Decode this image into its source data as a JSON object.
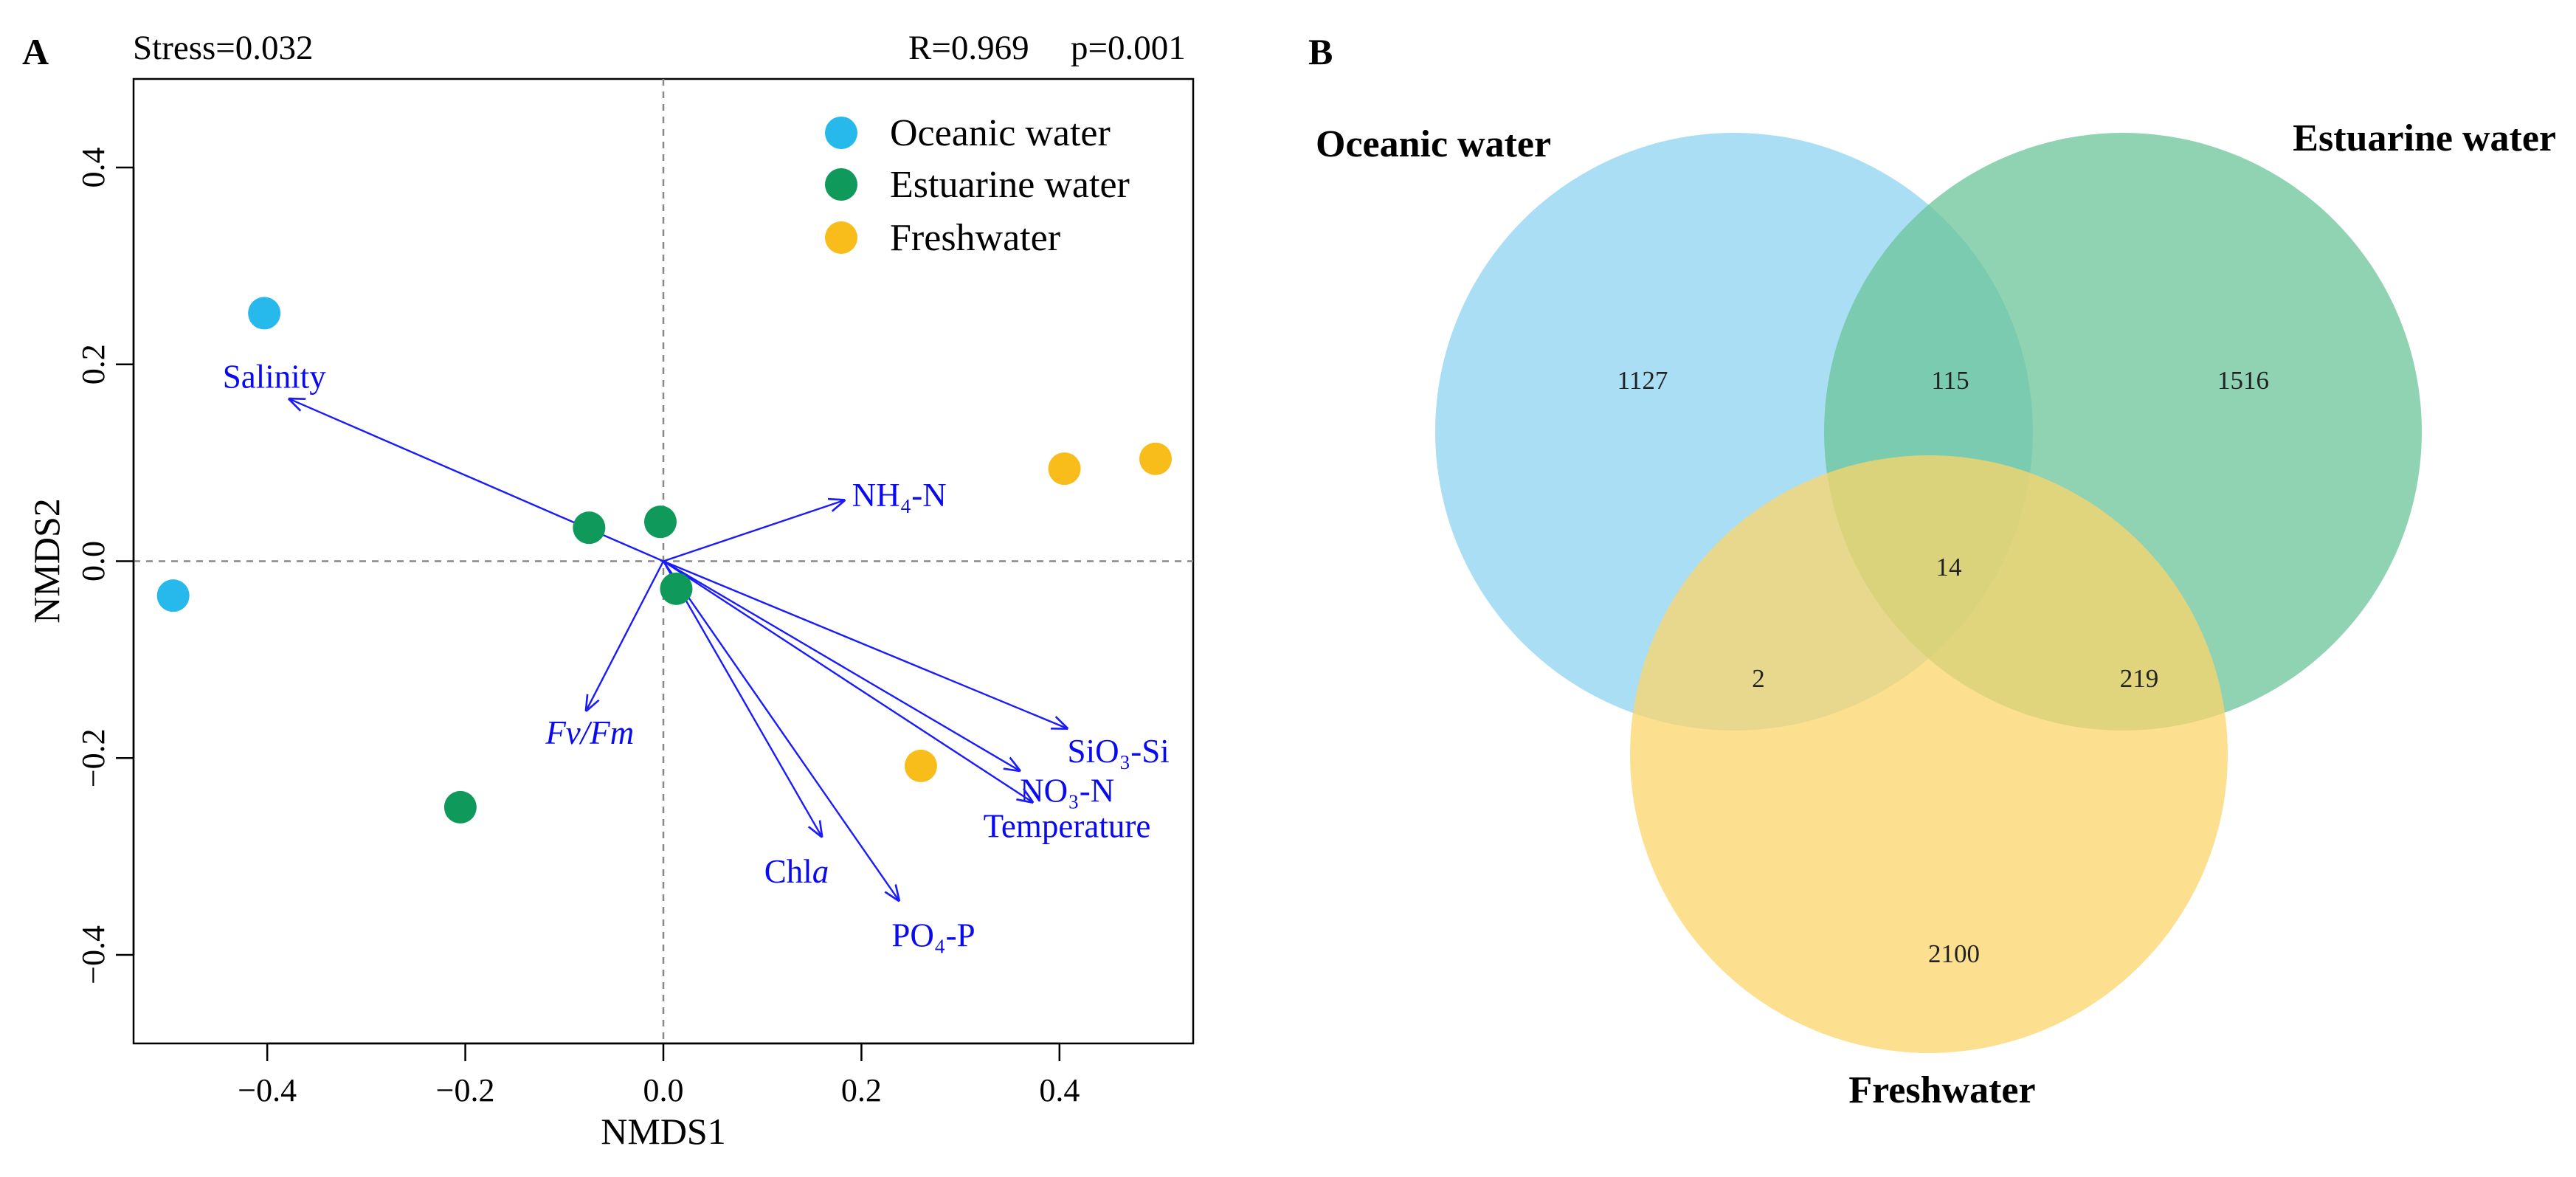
{
  "panel_a_letter": "A",
  "panel_b_letter": "B",
  "stress_text": "Stress=0.032",
  "r_text": "R=0.969",
  "p_text": "p=0.001",
  "colors": {
    "oceanic": "#27b8ec",
    "estuarine": "#0f9a5b",
    "freshwater": "#f8bd1a",
    "vector": "#1a1aff",
    "venn_oceanic": "#8ed3f2",
    "venn_estuarine": "#6bc49a",
    "venn_freshwater": "#fbd56a"
  },
  "chart_data": [
    {
      "type": "scatter",
      "title": "",
      "xlabel": "NMDS1",
      "ylabel": "NMDS2",
      "xlim": [
        -0.535,
        0.535
      ],
      "ylim": [
        -0.49,
        0.49
      ],
      "xticks": [
        -0.4,
        -0.2,
        0.0,
        0.2,
        0.4
      ],
      "yticks": [
        -0.4,
        -0.2,
        0.0,
        0.2,
        0.4
      ],
      "xtick_labels": [
        "−0.4",
        "−0.2",
        "0.0",
        "0.2",
        "0.4"
      ],
      "ytick_labels": [
        "−0.4",
        "−0.2",
        "0.0",
        "0.2",
        "0.4"
      ],
      "legend": "top-right",
      "series": [
        {
          "name": "Oceanic water",
          "color_key": "oceanic",
          "points": [
            [
              -0.403,
              0.252
            ],
            [
              -0.495,
              -0.035
            ]
          ]
        },
        {
          "name": "Estuarine water",
          "color_key": "estuarine",
          "points": [
            [
              -0.075,
              0.034
            ],
            [
              -0.003,
              0.04
            ],
            [
              0.013,
              -0.028
            ],
            [
              -0.205,
              -0.25
            ]
          ]
        },
        {
          "name": "Freshwater",
          "color_key": "freshwater",
          "points": [
            [
              0.405,
              0.094
            ],
            [
              0.497,
              0.104
            ],
            [
              0.26,
              -0.208
            ]
          ]
        }
      ],
      "vectors": [
        {
          "label": "Salinity",
          "x": -0.378,
          "y": 0.165,
          "italic": false
        },
        {
          "label": "NH₄-N",
          "x": 0.183,
          "y": 0.062,
          "italic": false
        },
        {
          "label": "Fv/Fm",
          "x": -0.078,
          "y": -0.152,
          "italic": true
        },
        {
          "label": "SiO₃-Si",
          "x": 0.408,
          "y": -0.17,
          "italic": false
        },
        {
          "label": "NO₃-N",
          "x": 0.36,
          "y": -0.213,
          "italic": false
        },
        {
          "label": "Temperature",
          "x": 0.373,
          "y": -0.245,
          "italic": false
        },
        {
          "label": "Chl",
          "label_suffix": "a",
          "x": 0.16,
          "y": -0.28,
          "italic": false
        },
        {
          "label": "PO₄-P",
          "x": 0.238,
          "y": -0.345,
          "italic": false
        }
      ]
    },
    {
      "type": "venn",
      "sets": [
        {
          "name": "Oceanic water",
          "color_key": "venn_oceanic"
        },
        {
          "name": "Estuarine water",
          "color_key": "venn_estuarine"
        },
        {
          "name": "Freshwater",
          "color_key": "venn_freshwater"
        }
      ],
      "regions": [
        {
          "sets": [
            "Oceanic water"
          ],
          "value": 1127
        },
        {
          "sets": [
            "Estuarine water"
          ],
          "value": 1516
        },
        {
          "sets": [
            "Freshwater"
          ],
          "value": 2100
        },
        {
          "sets": [
            "Oceanic water",
            "Estuarine water"
          ],
          "value": 115
        },
        {
          "sets": [
            "Oceanic water",
            "Freshwater"
          ],
          "value": 2
        },
        {
          "sets": [
            "Estuarine water",
            "Freshwater"
          ],
          "value": 219
        },
        {
          "sets": [
            "Oceanic water",
            "Estuarine water",
            "Freshwater"
          ],
          "value": 14
        }
      ]
    }
  ]
}
